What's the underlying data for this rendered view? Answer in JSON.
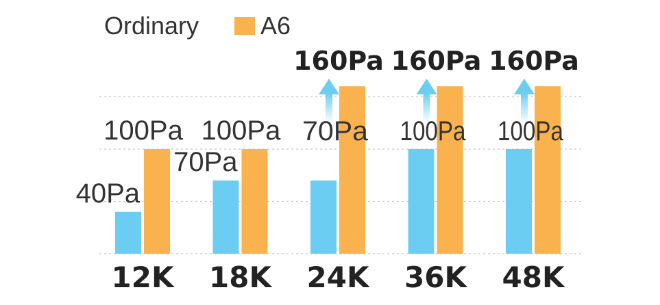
{
  "chart_data": {
    "type": "bar",
    "categories": [
      "12K",
      "18K",
      "24K",
      "36K",
      "48K"
    ],
    "series": [
      {
        "name": "Ordinary",
        "values": [
          40,
          70,
          70,
          100,
          100
        ],
        "labels": [
          "40Pa",
          "70Pa",
          "70Pa",
          "100Pa",
          "100Pa"
        ],
        "color": "#6ccdf3"
      },
      {
        "name": "A6",
        "values": [
          100,
          100,
          160,
          160,
          160
        ],
        "labels": [
          "100Pa",
          "100Pa",
          "160Pa",
          "160Pa",
          "160Pa"
        ],
        "color": "#f9b24e"
      }
    ],
    "ylim": [
      0,
      190
    ],
    "grid": true,
    "legend": "top-left",
    "upgrade_arrows": [
      false,
      false,
      true,
      true,
      true
    ],
    "arrow_color": "#6ccdf3"
  }
}
